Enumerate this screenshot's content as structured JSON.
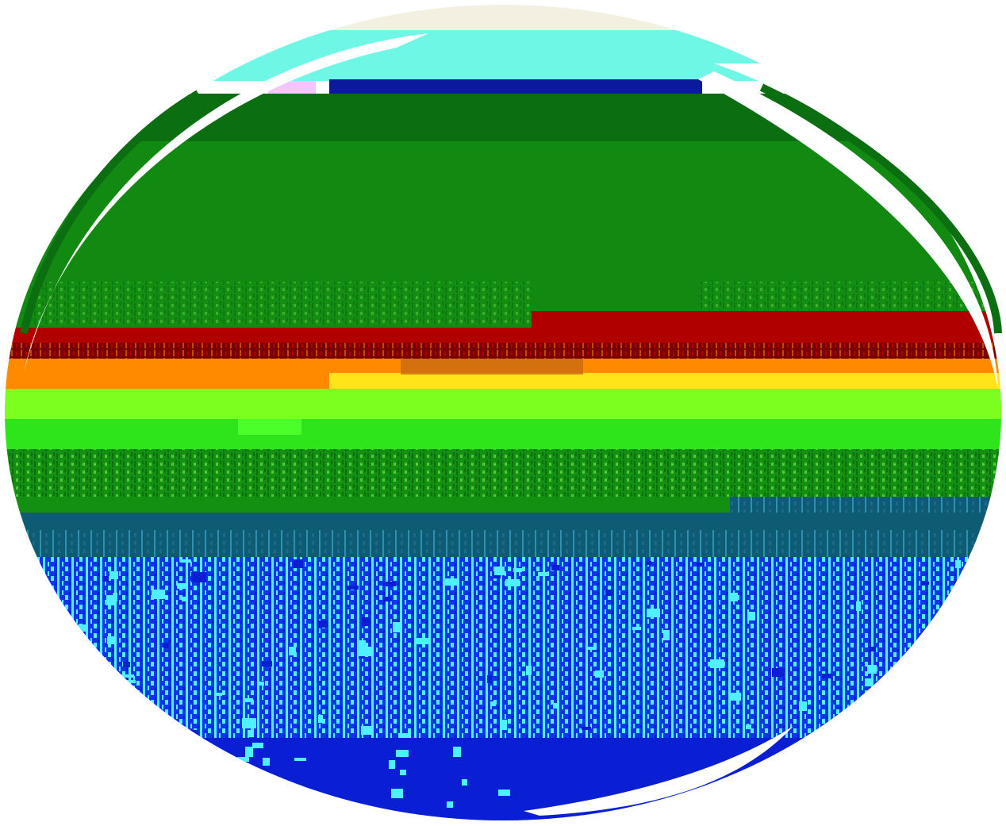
{
  "image": {
    "kind": "glitched oval-cropped photo",
    "background_color": "#ffffff",
    "palette": {
      "sky": "#6ff7e6",
      "sky_top": "#f3f0e2",
      "navy_bar": "#0b1a9c",
      "dark_green": "#0b6e10",
      "green": "#128a11",
      "red": "#b00000",
      "dark_red": "#7a0000",
      "orange": "#ff8a00",
      "yellow": "#ffe41a",
      "lime": "#7cff1e",
      "bright_green": "#2de51a",
      "mid_green": "#138f12",
      "teal": "#0e5c74",
      "cyan": "#4ff0ff",
      "blue": "#1034e8",
      "deep_blue": "#0a1fd4",
      "swoosh": "#ffffff"
    }
  }
}
